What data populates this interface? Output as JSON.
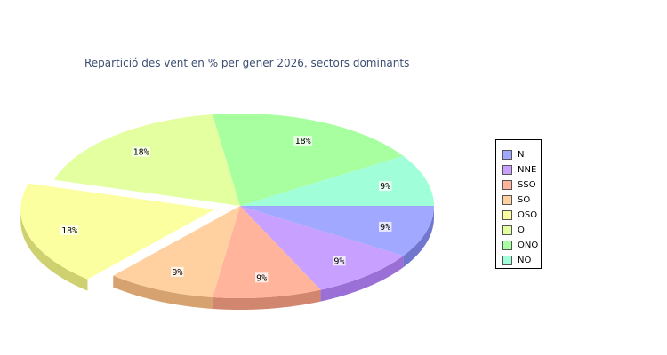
{
  "chart_data": {
    "type": "pie",
    "title": "Repartició des vent en % per gener 2026, sectors dominants",
    "slices": [
      {
        "name": "N",
        "value": 9,
        "label": "9%",
        "color": "#a0a8ff",
        "side": "#7077cc"
      },
      {
        "name": "NNE",
        "value": 9,
        "label": "9%",
        "color": "#c8a0ff",
        "side": "#9a70d6"
      },
      {
        "name": "SSO",
        "value": 9,
        "label": "9%",
        "color": "#ffb49b",
        "side": "#d0866f"
      },
      {
        "name": "SO",
        "value": 9,
        "label": "9%",
        "color": "#ffd0a0",
        "side": "#d6a270"
      },
      {
        "name": "OSO",
        "value": 18,
        "label": "18%",
        "color": "#fcffa0",
        "side": "#cfd070",
        "exploded": true
      },
      {
        "name": "O",
        "value": 18,
        "label": "18%",
        "color": "#e4ffa0",
        "side": "#b6d070"
      },
      {
        "name": "ONO",
        "value": 18,
        "label": "18%",
        "color": "#a8ffa0",
        "side": "#7ed070"
      },
      {
        "name": "NO",
        "value": 9,
        "label": "9%",
        "color": "#a0ffd8",
        "side": "#70d0aa"
      }
    ],
    "legend_position": "right"
  }
}
